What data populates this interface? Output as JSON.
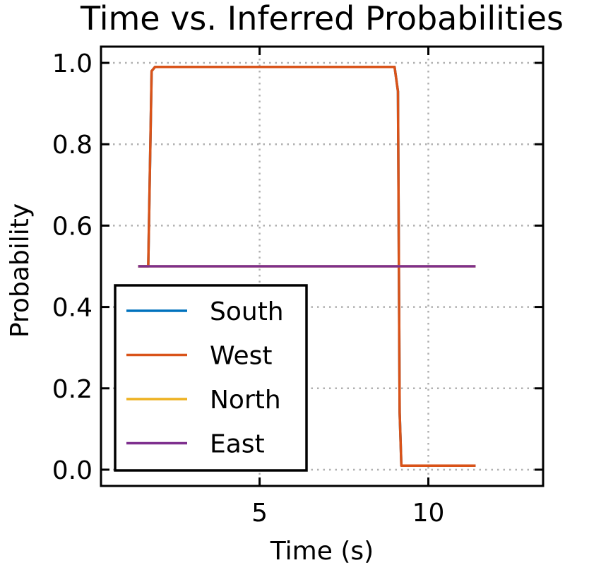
{
  "chart_data": {
    "type": "line",
    "title": "Time vs. Inferred Probabilities",
    "xlabel": "Time (s)",
    "ylabel": "Probability",
    "xlim": [
      0.3,
      13.4
    ],
    "ylim": [
      -0.04,
      1.04
    ],
    "x_ticks": [
      5,
      10
    ],
    "x_tick_labels": [
      "5",
      "10"
    ],
    "y_ticks": [
      0.0,
      0.2,
      0.4,
      0.6,
      0.8,
      1.0
    ],
    "y_tick_labels": [
      "0.0",
      "0.2",
      "0.4",
      "0.6",
      "0.8",
      "1.0"
    ],
    "grid": true,
    "legend_position": "lower-left",
    "series": [
      {
        "name": "South",
        "color": "#0072BD",
        "x": [
          1.4,
          1.7,
          1.8,
          1.9,
          2.0,
          9.0,
          9.1,
          9.15,
          9.2,
          11.4
        ],
        "y": [
          0.5,
          0.5,
          0.98,
          0.99,
          0.99,
          0.99,
          0.93,
          0.14,
          0.01,
          0.01
        ]
      },
      {
        "name": "West",
        "color": "#D95319",
        "x": [
          1.4,
          1.7,
          1.8,
          1.9,
          2.0,
          9.0,
          9.1,
          9.15,
          9.2,
          11.4
        ],
        "y": [
          0.5,
          0.5,
          0.98,
          0.99,
          0.99,
          0.99,
          0.93,
          0.14,
          0.01,
          0.01
        ]
      },
      {
        "name": "North",
        "color": "#EDB120",
        "x": [
          1.4,
          11.4
        ],
        "y": [
          0.5,
          0.5
        ]
      },
      {
        "name": "East",
        "color": "#7E2F8E",
        "x": [
          1.4,
          11.4
        ],
        "y": [
          0.5,
          0.5
        ]
      }
    ]
  }
}
